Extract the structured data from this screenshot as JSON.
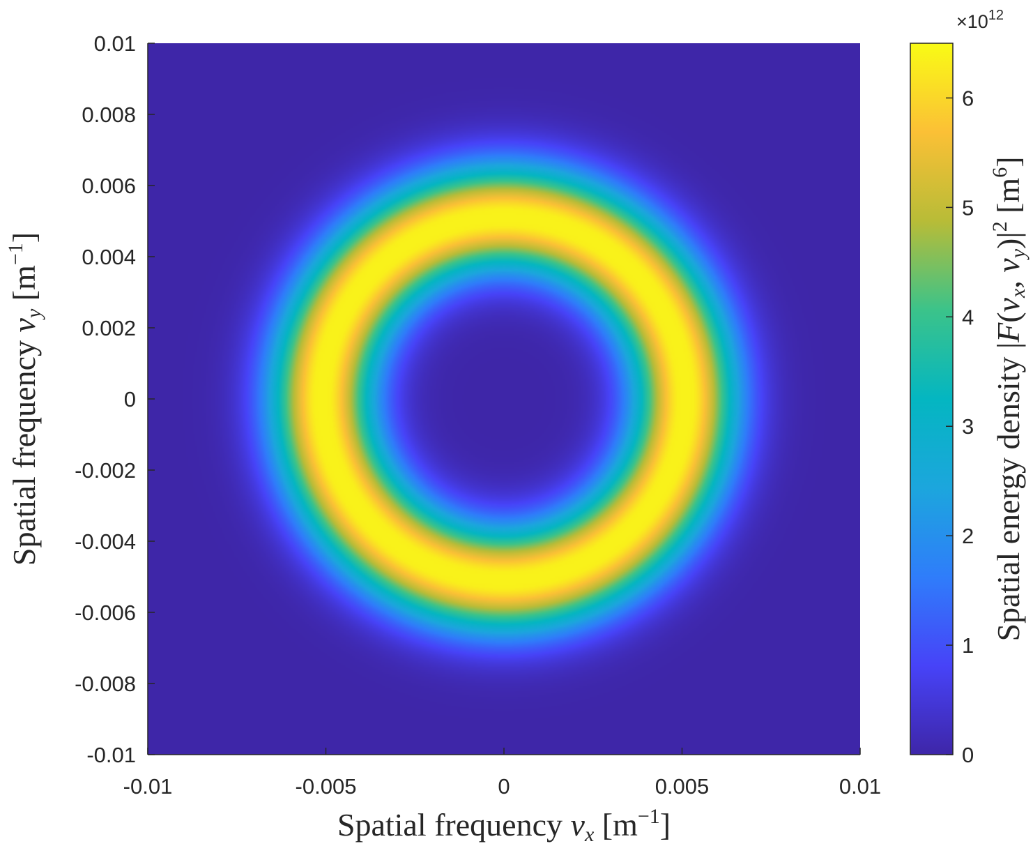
{
  "chart_data": {
    "type": "heatmap",
    "description_of_field": "annular ring of spatial energy density",
    "xlim": [
      -0.01,
      0.01
    ],
    "ylim": [
      -0.01,
      0.01
    ],
    "x_ticks": [
      "-0.01",
      "-0.005",
      "0",
      "0.005",
      "0.01"
    ],
    "x_tick_values": [
      -0.01,
      -0.005,
      0,
      0.005,
      0.01
    ],
    "y_ticks": [
      "0.01",
      "0.008",
      "0.006",
      "0.004",
      "0.002",
      "0",
      "-0.002",
      "-0.004",
      "-0.006",
      "-0.008",
      "-0.01"
    ],
    "y_tick_values": [
      0.01,
      0.008,
      0.006,
      0.004,
      0.002,
      0,
      -0.002,
      -0.004,
      -0.006,
      -0.008,
      -0.01
    ],
    "xlabel": "Spatial frequency ν_x [m⁻¹]",
    "ylabel": "Spatial frequency ν_y [m⁻¹]",
    "ring": {
      "center": [
        0,
        0
      ],
      "peak_radius": 0.0051,
      "width_sigma": 0.00105,
      "peak_value": 6.5
    },
    "colorbar": {
      "label": "Spatial energy density |F(ν_x, ν_y)|² [m⁶]",
      "ticks": [
        "0",
        "1",
        "2",
        "3",
        "4",
        "5",
        "6"
      ],
      "tick_values": [
        0,
        1,
        2,
        3,
        4,
        5,
        6
      ],
      "clim": [
        0,
        6.5
      ],
      "exponent": "×10",
      "exponent_power": "12",
      "colormap": "parula"
    }
  },
  "labels": {
    "x_main": "Spatial frequency ",
    "x_var": "ν",
    "x_sub": "x",
    "x_unit_open": " [m",
    "x_unit_sup": "−1",
    "x_unit_close": "]",
    "y_main": "Spatial frequency ",
    "y_var": "ν",
    "y_sub": "y",
    "y_unit_open": " [m",
    "y_unit_sup": "−1",
    "y_unit_close": "]",
    "cb_main": "Spatial energy density |",
    "cb_F": "F",
    "cb_open": "(",
    "cb_nu1": "ν",
    "cb_sub1": "x",
    "cb_comma": ", ",
    "cb_nu2": "ν",
    "cb_sub2": "y",
    "cb_close": ")|",
    "cb_sq": "2",
    "cb_unit_open": " [m",
    "cb_unit_sup": "6",
    "cb_unit_close": "]",
    "exp_base": "×10",
    "exp_power": "12"
  }
}
